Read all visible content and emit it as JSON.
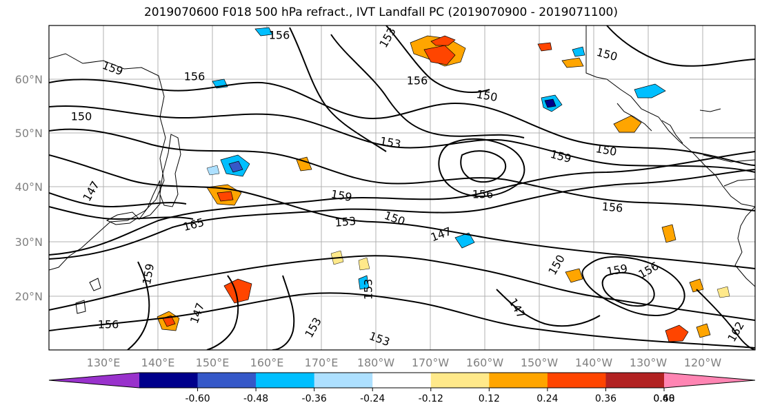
{
  "title": "2019070600 F018 500 hPa refract., IVT Landfall PC (2019070900 - 2019071100)",
  "map": {
    "lat_labels": [
      "60°N",
      "50°N",
      "40°N",
      "30°N",
      "20°N"
    ],
    "lon_labels": [
      "130°E",
      "140°E",
      "150°E",
      "160°E",
      "170°E",
      "180°W",
      "170°W",
      "160°W",
      "150°W",
      "140°W",
      "130°W",
      "120°W"
    ],
    "contour_labels": [
      "156",
      "159",
      "150",
      "153",
      "147",
      "165",
      "150",
      "156",
      "159",
      "153",
      "156",
      "150",
      "159",
      "147",
      "153",
      "150",
      "156",
      "159",
      "156",
      "147",
      "150",
      "153",
      "156",
      "162",
      "150",
      "153",
      "159",
      "147",
      "156",
      "153"
    ]
  },
  "colorbar": {
    "colors": [
      "#9932CC",
      "#00008B",
      "#3558C8",
      "#00BFFF",
      "#ADE0FF",
      "#FFFFFF",
      "#FFE98A",
      "#FFA500",
      "#FF4500",
      "#B22222",
      "#FF85B3"
    ],
    "tick_labels": [
      "-0.60",
      "-0.48",
      "-0.36",
      "-0.24",
      "-0.12",
      "0.12",
      "0.24",
      "0.36",
      "0.48",
      "0.60"
    ]
  }
}
